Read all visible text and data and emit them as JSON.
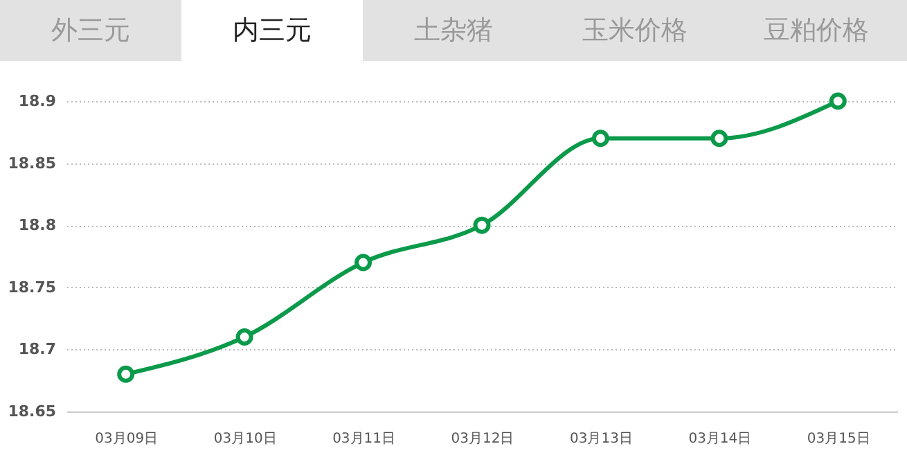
{
  "chart_data": {
    "type": "line",
    "annotations": [
      "外三元",
      "内三元",
      "土杂猪",
      "玉米价格",
      "豆粕价格"
    ],
    "categories": [
      "03月09日",
      "03月10日",
      "03月11日",
      "03月12日",
      "03月13日",
      "03月14日",
      "03月15日"
    ],
    "series": [
      {
        "color": "#0a9a4a",
        "values": [
          18.68,
          18.71,
          18.77,
          18.8,
          18.87,
          18.87,
          18.9
        ]
      }
    ],
    "ylim": [
      18.65,
      18.9
    ],
    "yticks": [
      18.65,
      18.7,
      18.75,
      18.8,
      18.85,
      18.9
    ],
    "grid": "y",
    "legend": false,
    "marker": "circle",
    "line_style": "solid"
  }
}
